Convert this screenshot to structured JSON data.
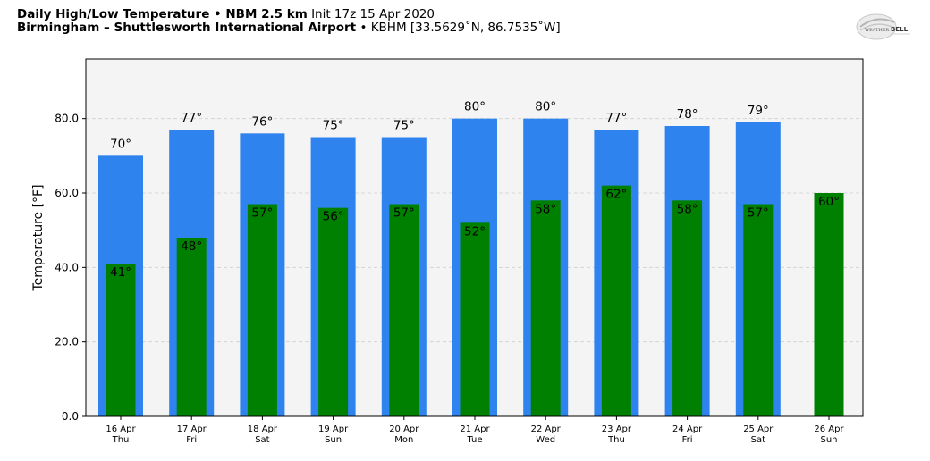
{
  "header": {
    "title_bold": "Daily High/Low Temperature • NBM 2.5 km",
    "title_init": "Init 17z 15 Apr 2020",
    "location_bold": "Birmingham – Shuttlesworth International Airport",
    "location_detail": "• KBHM [33.5629˚N, 86.7535˚W]"
  },
  "logo": {
    "name": "weatherbell-logo",
    "text_left": "WEATHER",
    "text_right": "BELL"
  },
  "chart_data": {
    "type": "bar",
    "ylabel": "Temperature [°F]",
    "ylim": [
      0,
      96
    ],
    "yticks": [
      0,
      20,
      40,
      60,
      80
    ],
    "ytick_labels": [
      "0.0",
      "20.0",
      "40.0",
      "60.0",
      "80.0"
    ],
    "grid": true,
    "categories": [
      {
        "date": "16 Apr",
        "day": "Thu"
      },
      {
        "date": "17 Apr",
        "day": "Fri"
      },
      {
        "date": "18 Apr",
        "day": "Sat"
      },
      {
        "date": "19 Apr",
        "day": "Sun"
      },
      {
        "date": "20 Apr",
        "day": "Mon"
      },
      {
        "date": "21 Apr",
        "day": "Tue"
      },
      {
        "date": "22 Apr",
        "day": "Wed"
      },
      {
        "date": "23 Apr",
        "day": "Thu"
      },
      {
        "date": "24 Apr",
        "day": "Fri"
      },
      {
        "date": "25 Apr",
        "day": "Sat"
      },
      {
        "date": "26 Apr",
        "day": "Sun"
      }
    ],
    "series": [
      {
        "key": "high",
        "color": "#2e83ee",
        "values": [
          70,
          77,
          76,
          75,
          75,
          80,
          80,
          77,
          78,
          79,
          null
        ],
        "labels": [
          "70°",
          "77°",
          "76°",
          "75°",
          "75°",
          "80°",
          "80°",
          "77°",
          "78°",
          "79°",
          ""
        ]
      },
      {
        "key": "low",
        "color": "#008000",
        "values": [
          41,
          48,
          57,
          56,
          57,
          52,
          58,
          62,
          58,
          57,
          60
        ],
        "labels": [
          "41°",
          "48°",
          "57°",
          "56°",
          "57°",
          "52°",
          "58°",
          "62°",
          "58°",
          "57°",
          "60°"
        ]
      }
    ],
    "plot_background": "#f4f4f4"
  }
}
